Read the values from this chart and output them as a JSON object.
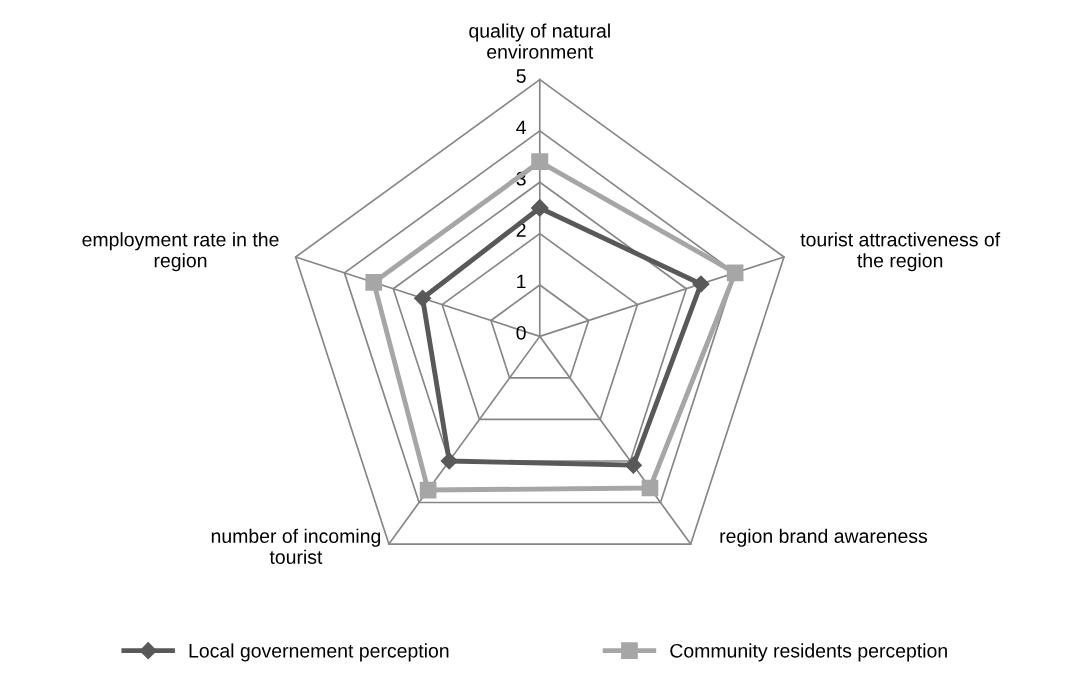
{
  "chart_data": {
    "type": "radar",
    "categories": [
      "quality of natural\nenvironment",
      "tourist attractiveness of\nthe region",
      "region brand awareness",
      "number of incoming\ntourist",
      "employment rate in the\nregion"
    ],
    "series": [
      {
        "name": "Local governement perception",
        "color": "#595959",
        "marker": "diamond",
        "values": [
          2.5,
          3.3,
          3.1,
          3.0,
          2.4
        ]
      },
      {
        "name": "Community residents perception",
        "color": "#a6a6a6",
        "marker": "square",
        "values": [
          3.4,
          4.0,
          3.65,
          3.7,
          3.4
        ]
      }
    ],
    "ylim": [
      0,
      5
    ],
    "yticks": [
      0,
      1,
      2,
      3,
      4,
      5
    ],
    "grid": true,
    "legend": "bottom"
  }
}
